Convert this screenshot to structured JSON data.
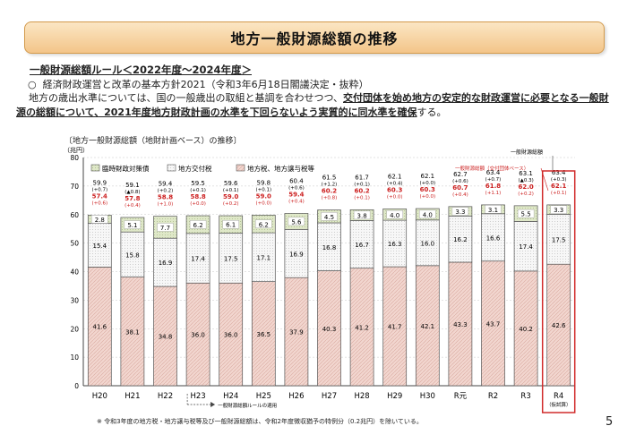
{
  "page": {
    "title": "地方一般財源総額の推移",
    "rule_title": "一般財源総額ルール＜2022年度～2024年度＞",
    "rule_item_marker": "○",
    "rule_item_text": "経済財政運営と改革の基本方針2021（令和3年6月18日閣議決定・抜粋）",
    "rule_body_lead": "地方の歳出水準については、国の一般歳出の取組と基調を合わせつつ、",
    "rule_body_emphasis": "交付団体を始め地方の安定的な財政運営に必要となる一般財源の総額について、2021年度地方財政計画の水準を下回らないよう実質的に同水準を確保",
    "rule_body_tail": "する。",
    "chart_caption": "〔地方一般財源総額（地財計画ベース）の推移〕",
    "footnote": "※ 令和3年度の地方税・地方譲与税等及び一般財源総額は、令和2年度徴収猶予の特例分（0.2兆円）を除いている。",
    "page_number": "5"
  },
  "chart_data": {
    "type": "bar",
    "stacked": true,
    "unit": "（兆円）",
    "ylim": [
      0,
      80
    ],
    "yticks": [
      0,
      10,
      20,
      30,
      40,
      50,
      60,
      70,
      80
    ],
    "categories": [
      "H20",
      "H21",
      "H22",
      "H23",
      "H24",
      "H25",
      "H26",
      "H27",
      "H28",
      "H29",
      "H30",
      "R元",
      "R2",
      "R3",
      "R4"
    ],
    "x_sublabel_R4": "（仮試算）",
    "series": [
      {
        "name": "地方税、地方譲与税等",
        "color": "#f2d6cf",
        "values": [
          41.6,
          38.1,
          34.8,
          36.0,
          36.0,
          36.5,
          37.9,
          40.3,
          41.2,
          41.7,
          42.1,
          43.3,
          43.7,
          40.2,
          42.6
        ]
      },
      {
        "name": "地方交付税",
        "color": "#f7f7f7",
        "values": [
          15.4,
          15.8,
          16.9,
          17.4,
          17.5,
          17.1,
          16.9,
          16.8,
          16.7,
          16.3,
          16.0,
          16.2,
          16.6,
          17.4,
          17.5
        ]
      },
      {
        "name": "臨時財政対策債",
        "color": "#dfe8c8",
        "values": [
          2.8,
          5.1,
          7.7,
          6.2,
          6.1,
          6.2,
          5.6,
          4.5,
          3.8,
          4.0,
          4.0,
          3.3,
          3.1,
          5.5,
          3.3
        ]
      }
    ],
    "totals": [
      "59.9",
      "59.1",
      "59.4",
      "59.5",
      "59.6",
      "59.8",
      "60.4",
      "61.5",
      "61.7",
      "62.1",
      "62.1",
      "62.7",
      "63.4",
      "63.1",
      "63.4"
    ],
    "totals_change": [
      "(+0.7)",
      "(▲0.8)",
      "(+0.2)",
      "(+0.1)",
      "(+0.1)",
      "(+0.1)",
      "(+0.6)",
      "(+1.2)",
      "(+0.1)",
      "(+0.4)",
      "(+0.0)",
      "(+0.6)",
      "(+0.7)",
      "(▲0.3)",
      "(+0.3)"
    ],
    "grant_totals": [
      "57.4",
      "57.8",
      "58.8",
      "58.8",
      "59.0",
      "59.0",
      "59.4",
      "60.2",
      "60.2",
      "60.3",
      "60.3",
      "60.7",
      "61.8",
      "62.0",
      "62.1"
    ],
    "grant_totals_change": [
      "(+0.6)",
      "(+0.4)",
      "(+1.0)",
      "(+0.0)",
      "(+0.2)",
      "(+0.0)",
      "(+0.4)",
      "(+0.8)",
      "(+0.1)",
      "(+0.0)",
      "(+0.0)",
      "(+0.4)",
      "(+1.1)",
      "(+0.2)",
      "(+0.1)"
    ],
    "annotations": {
      "total_label": "一般財源総額",
      "grant_label": "一般財源総額（交付団体ベース）",
      "rule_applied": "一般財源総額ルールの適用"
    },
    "colors": {
      "highlight": "#d12b2b",
      "grant_text": "#cc2020",
      "bar_border": "#555555"
    }
  }
}
